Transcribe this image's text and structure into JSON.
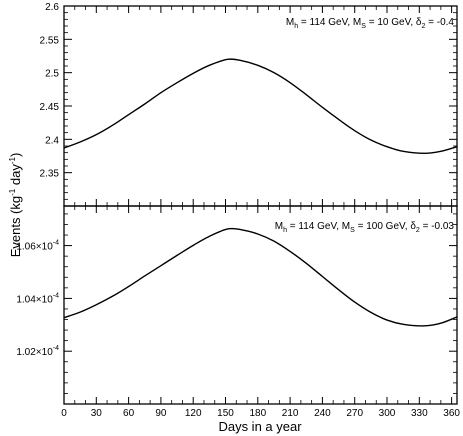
{
  "chart_data": [
    {
      "type": "line",
      "xlabel": "Days in a year",
      "ylabel": "Events (kg-1 day-1)",
      "ylabel_parts": {
        "main": "Events (kg",
        "sup1": "-1",
        "mid": " day",
        "sup2": "-1",
        "end": ")"
      },
      "annotation": {
        "m_h": "M",
        "m_h_sub": "h",
        "part1": " = 114 GeV, M",
        "m_s_sub": "S",
        "part2": " = 10 GeV, δ",
        "delta_sub": "2",
        "part3": " = -0.4"
      },
      "xlim": [
        0,
        365
      ],
      "ylim": [
        2.3,
        2.6
      ],
      "x_ticks": [
        0,
        30,
        60,
        90,
        120,
        150,
        180,
        210,
        240,
        270,
        300,
        330,
        360
      ],
      "y_ticks": [
        2.35,
        2.4,
        2.45,
        2.5,
        2.55,
        2.6
      ],
      "y_tick_labels": [
        "2.35",
        "2.4",
        "2.45",
        "2.5",
        "2.55",
        "2.6"
      ],
      "series": [
        {
          "x": [
            0,
            15,
            30,
            45,
            60,
            75,
            90,
            105,
            120,
            135,
            152,
            165,
            180,
            195,
            210,
            225,
            240,
            255,
            270,
            285,
            300,
            315,
            335,
            350,
            365
          ],
          "y": [
            2.387,
            2.396,
            2.407,
            2.421,
            2.437,
            2.453,
            2.47,
            2.485,
            2.499,
            2.511,
            2.52,
            2.518,
            2.511,
            2.5,
            2.485,
            2.467,
            2.448,
            2.43,
            2.413,
            2.399,
            2.389,
            2.382,
            2.379,
            2.382,
            2.389
          ]
        }
      ]
    },
    {
      "type": "line",
      "xlabel": "Days in a year",
      "annotation": {
        "m_h": "M",
        "m_h_sub": "h",
        "part1": " = 114 GeV, M",
        "m_s_sub": "S",
        "part2": " = 100 GeV, δ",
        "delta_sub": "2",
        "part3": " = -0.03"
      },
      "xlim": [
        0,
        365
      ],
      "ylim": [
        1.0,
        1.075
      ],
      "x_ticks": [
        0,
        30,
        60,
        90,
        120,
        150,
        180,
        210,
        240,
        270,
        300,
        330,
        360
      ],
      "y_ticks": [
        1.02,
        1.04,
        1.06
      ],
      "y_tick_labels": [
        {
          "base": "1.02×10",
          "exp": "-4"
        },
        {
          "base": "1.04×10",
          "exp": "-4"
        },
        {
          "base": "1.06×10",
          "exp": "-4"
        }
      ],
      "series": [
        {
          "x": [
            0,
            15,
            30,
            45,
            60,
            75,
            90,
            105,
            120,
            135,
            152,
            165,
            180,
            195,
            210,
            225,
            240,
            255,
            270,
            285,
            300,
            315,
            335,
            350,
            365
          ],
          "y": [
            1.0327,
            1.0348,
            1.0376,
            1.0408,
            1.0445,
            1.0485,
            1.0524,
            1.0563,
            1.0601,
            1.0635,
            1.0663,
            1.066,
            1.0644,
            1.0617,
            1.0578,
            1.0533,
            1.0483,
            1.0433,
            1.0386,
            1.0347,
            1.0318,
            1.0302,
            1.0296,
            1.0306,
            1.033
          ]
        }
      ]
    }
  ]
}
